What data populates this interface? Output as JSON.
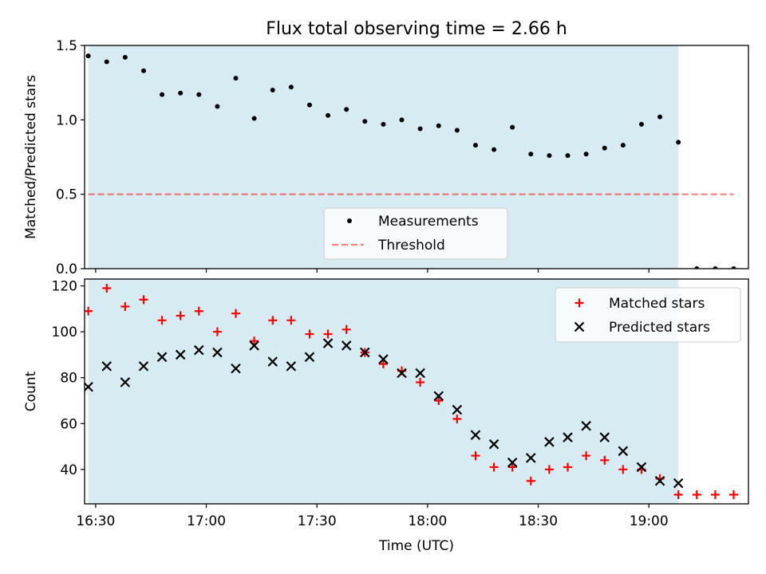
{
  "title": "Flux total observing time = 2.66 h",
  "colors": {
    "shade": "#add8e6",
    "measurement": "#000000",
    "threshold": "#ff0000",
    "matched": "#ff0000",
    "predicted": "#000000"
  },
  "chart_data": [
    {
      "type": "scatter",
      "panel": "top",
      "xlabel": "",
      "ylabel": "Matched/Predicted stars",
      "xlim": [
        "16:27",
        "19:27"
      ],
      "ylim": [
        0,
        1.5
      ],
      "y_ticks": [
        "0.0",
        "0.5",
        "1.0",
        "1.5"
      ],
      "shaded_span": [
        "16:28",
        "19:08"
      ],
      "legend": {
        "placement": "lower-center",
        "entries": [
          "Measurements",
          "Threshold"
        ]
      },
      "series": [
        {
          "name": "Measurements",
          "marker": "dot",
          "x": [
            "16:28",
            "16:33",
            "16:38",
            "16:43",
            "16:48",
            "16:53",
            "16:58",
            "17:03",
            "17:08",
            "17:13",
            "17:18",
            "17:23",
            "17:28",
            "17:33",
            "17:38",
            "17:43",
            "17:48",
            "17:53",
            "17:58",
            "18:03",
            "18:08",
            "18:13",
            "18:18",
            "18:23",
            "18:28",
            "18:33",
            "18:38",
            "18:43",
            "18:48",
            "18:53",
            "18:58",
            "19:03",
            "19:08",
            "19:13",
            "19:18",
            "19:23"
          ],
          "y": [
            1.43,
            1.39,
            1.42,
            1.33,
            1.17,
            1.18,
            1.17,
            1.09,
            1.28,
            1.01,
            1.2,
            1.22,
            1.1,
            1.03,
            1.07,
            0.99,
            0.97,
            1.0,
            0.94,
            0.96,
            0.93,
            0.83,
            0.8,
            0.95,
            0.77,
            0.76,
            0.76,
            0.77,
            0.81,
            0.83,
            0.97,
            1.02,
            0.85,
            0.0,
            0.0,
            0.0
          ]
        },
        {
          "name": "Threshold",
          "line": "dashed",
          "x": [
            "16:28",
            "19:23"
          ],
          "y": [
            0.5,
            0.5
          ]
        }
      ]
    },
    {
      "type": "scatter",
      "panel": "bottom",
      "xlabel": "Time (UTC)",
      "ylabel": "Count",
      "xlim": [
        "16:27",
        "19:27"
      ],
      "ylim": [
        25,
        123
      ],
      "x_ticks": [
        "16:30",
        "17:00",
        "17:30",
        "18:00",
        "18:30",
        "19:00"
      ],
      "y_ticks": [
        "40",
        "60",
        "80",
        "100",
        "120"
      ],
      "shaded_span": [
        "16:28",
        "19:08"
      ],
      "legend": {
        "placement": "top-right",
        "entries": [
          "Matched stars",
          "Predicted stars"
        ]
      },
      "series": [
        {
          "name": "Matched stars",
          "marker": "plus",
          "x": [
            "16:28",
            "16:33",
            "16:38",
            "16:43",
            "16:48",
            "16:53",
            "16:58",
            "17:03",
            "17:08",
            "17:13",
            "17:18",
            "17:23",
            "17:28",
            "17:33",
            "17:38",
            "17:43",
            "17:48",
            "17:53",
            "17:58",
            "18:03",
            "18:08",
            "18:13",
            "18:18",
            "18:23",
            "18:28",
            "18:33",
            "18:38",
            "18:43",
            "18:48",
            "18:53",
            "18:58",
            "19:03",
            "19:08",
            "19:13",
            "19:18",
            "19:23"
          ],
          "y": [
            109,
            119,
            111,
            114,
            105,
            107,
            109,
            100,
            108,
            96,
            105,
            105,
            99,
            99,
            101,
            91,
            86,
            83,
            78,
            70,
            62,
            46,
            41,
            41,
            35,
            40,
            41,
            46,
            44,
            40,
            40,
            36,
            29,
            29,
            29,
            29
          ]
        },
        {
          "name": "Predicted stars",
          "marker": "x",
          "x": [
            "16:28",
            "16:33",
            "16:38",
            "16:43",
            "16:48",
            "16:53",
            "16:58",
            "17:03",
            "17:08",
            "17:13",
            "17:18",
            "17:23",
            "17:28",
            "17:33",
            "17:38",
            "17:43",
            "17:48",
            "17:53",
            "17:58",
            "18:03",
            "18:08",
            "18:13",
            "18:18",
            "18:23",
            "18:28",
            "18:33",
            "18:38",
            "18:43",
            "18:48",
            "18:53",
            "18:58",
            "19:03",
            "19:08"
          ],
          "y": [
            76,
            85,
            78,
            85,
            89,
            90,
            92,
            91,
            84,
            94,
            87,
            85,
            89,
            95,
            94,
            91,
            88,
            82,
            82,
            72,
            66,
            55,
            51,
            43,
            45,
            52,
            54,
            59,
            54,
            48,
            41,
            35,
            34
          ]
        }
      ]
    }
  ]
}
